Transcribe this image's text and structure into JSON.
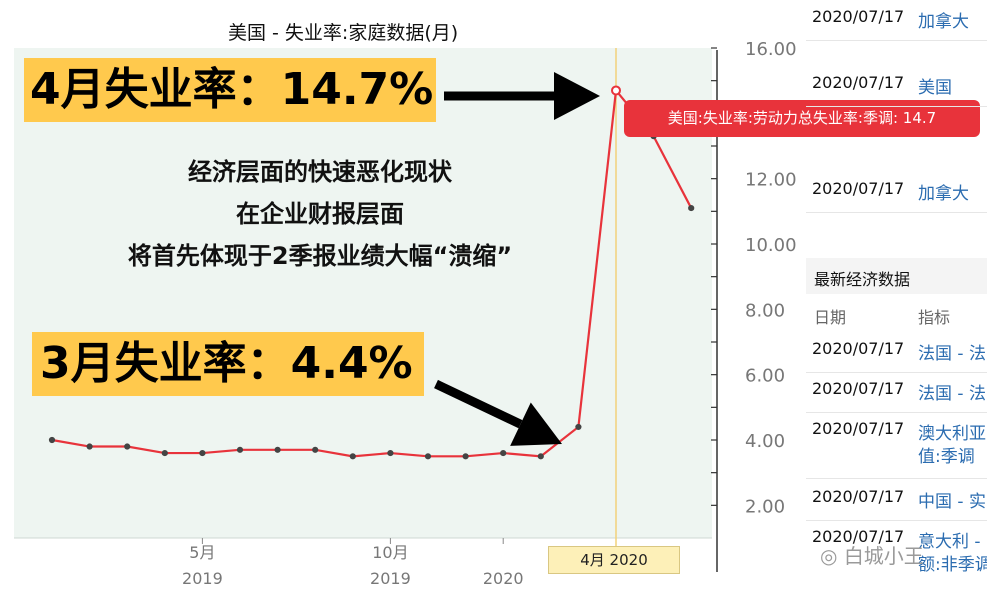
{
  "title": "美国 - 失业率:家庭数据(月)",
  "callouts": {
    "april": "4月失业率：14.7%",
    "march": "3月失业率：4.4%"
  },
  "annotation_lines": [
    "经济层面的快速恶化现状",
    "在企业财报层面",
    "将首先体现于2季报业绩大幅“溃缩”"
  ],
  "tooltip": "美国:失业率:劳动力总失业率:季调: 14.7",
  "hover_label": "4月 2020",
  "panel": {
    "top_rows": [
      {
        "date": "2020/07/17",
        "name": "加拿大"
      },
      {
        "date": "2020/07/17",
        "name": "美国"
      },
      {
        "date": "2020/07/17",
        "name": "加拿大"
      }
    ],
    "section_title": "最新经济数据",
    "col_date": "日期",
    "col_indicator": "指标",
    "rows": [
      {
        "date": "2020/07/17",
        "name": "法国 - 法",
        "name2": ""
      },
      {
        "date": "2020/07/17",
        "name": "法国 - 法",
        "name2": ""
      },
      {
        "date": "2020/07/17",
        "name": "澳大利亚",
        "name2": "值:季调"
      },
      {
        "date": "2020/07/17",
        "name": "中国 - 实",
        "name2": ""
      },
      {
        "date": "2020/07/17",
        "name": "意大利 -",
        "name2": "额:非季调"
      }
    ]
  },
  "watermark": "白城小王",
  "colors": {
    "line": "#e8333b",
    "plot_bg": "#eef5f1",
    "callout_bg": "#ffc94d",
    "hover_line": "#f2d27a"
  },
  "chart_data": {
    "type": "line",
    "title": "美国 - 失业率:家庭数据(月)",
    "x": [
      "2019-01",
      "2019-02",
      "2019-03",
      "2019-04",
      "2019-05",
      "2019-06",
      "2019-07",
      "2019-08",
      "2019-09",
      "2019-10",
      "2019-11",
      "2019-12",
      "2020-01",
      "2020-02",
      "2020-03",
      "2020-04",
      "2020-05",
      "2020-06"
    ],
    "series": [
      {
        "values": [
          4.0,
          3.8,
          3.8,
          3.6,
          3.6,
          3.7,
          3.7,
          3.7,
          3.5,
          3.6,
          3.5,
          3.5,
          3.6,
          3.5,
          4.4,
          14.7,
          13.3,
          11.1
        ]
      }
    ],
    "y_ticks": [
      "2.00",
      "4.00",
      "6.00",
      "8.00",
      "10.00",
      "12.00",
      "14.00",
      "16.00"
    ],
    "ylim": [
      1.0,
      16.0
    ],
    "x_ticks": [
      {
        "label": "5月",
        "year": "2019",
        "x": "2019-05"
      },
      {
        "label": "10月",
        "year": "2019",
        "x": "2019-10"
      },
      {
        "label": "",
        "year": "2020",
        "x": "2020-01"
      }
    ],
    "highlight": {
      "x": "2020-04",
      "value": 14.7
    },
    "grid": false
  }
}
